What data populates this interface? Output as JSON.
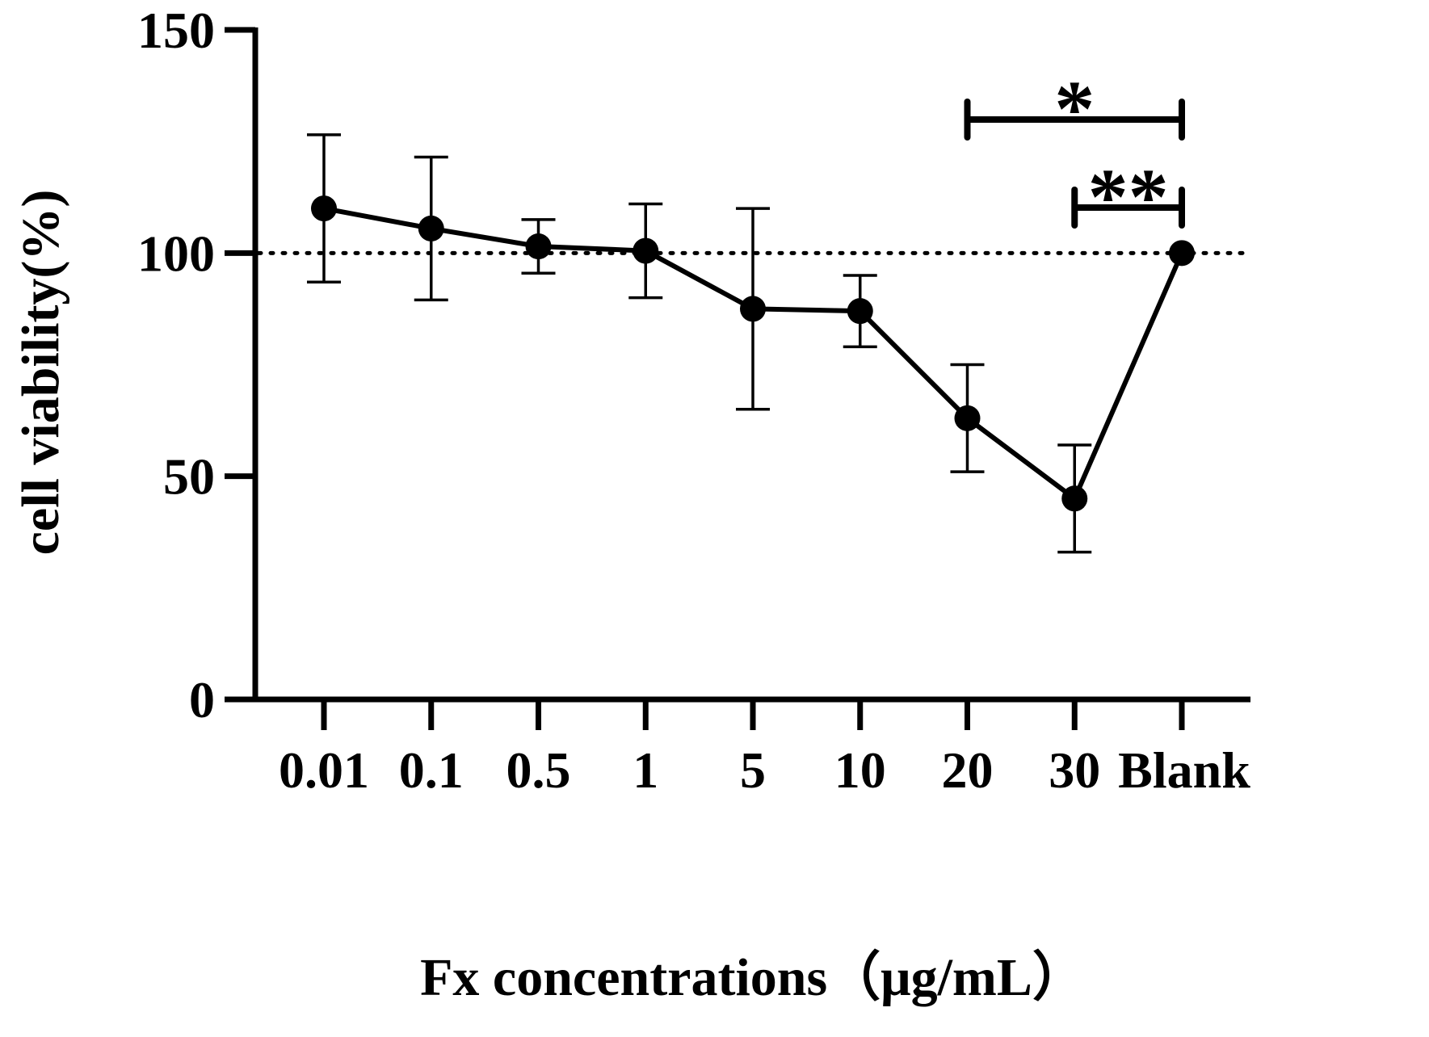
{
  "chart_data": {
    "type": "line",
    "title": "",
    "xlabel": "Fx concentrations（μg/mL）",
    "ylabel": "cell viability(%)",
    "categories": [
      "0.01",
      "0.1",
      "0.5",
      "1",
      "5",
      "10",
      "20",
      "30",
      "Blank"
    ],
    "series": [
      {
        "name": "cell viability",
        "values": [
          110,
          105.5,
          101.5,
          100.5,
          87.5,
          87,
          63,
          45,
          100
        ],
        "error": [
          16.5,
          16,
          6,
          10.5,
          22.5,
          8,
          12,
          12,
          0
        ]
      }
    ],
    "ylim": [
      0,
      150
    ],
    "yticks": [
      "0",
      "50",
      "100",
      "150"
    ],
    "reference_line": {
      "value": 100,
      "style": "dotted"
    },
    "significance": [
      {
        "label": "*",
        "from": "20",
        "to": "Blank"
      },
      {
        "label": "**",
        "from": "30",
        "to": "Blank"
      }
    ],
    "colors": {
      "line": "#000000",
      "marker": "#000000",
      "axis": "#000000"
    }
  }
}
